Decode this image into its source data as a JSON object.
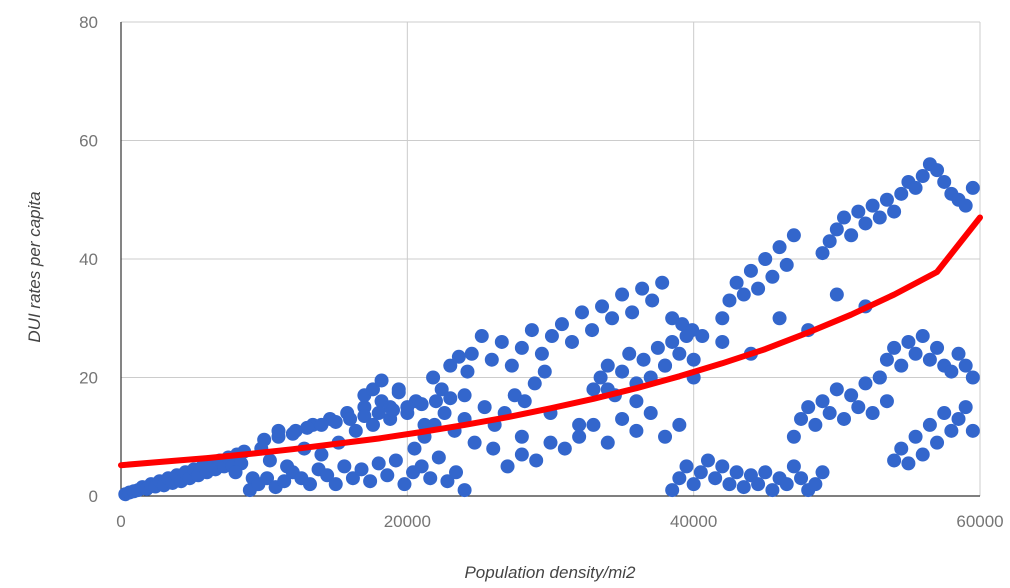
{
  "chart_data": {
    "type": "scatter",
    "title": "",
    "xlabel": "Population density/mi2",
    "ylabel": "DUI rates per capita",
    "xlim": [
      0,
      60000
    ],
    "ylim": [
      0,
      80
    ],
    "x_ticks": [
      0,
      20000,
      40000,
      60000
    ],
    "y_ticks": [
      0,
      20,
      40,
      60,
      80
    ],
    "x_tick_labels": [
      "0",
      "20000",
      "40000",
      "60000"
    ],
    "y_tick_labels": [
      "0",
      "20",
      "40",
      "60",
      "80"
    ],
    "grid": true,
    "legend": "none",
    "colors": {
      "points": "#3366cc",
      "trendline": "#ff0000",
      "grid": "#cccccc",
      "axis": "#333333"
    },
    "series": [
      {
        "x": [
          300,
          600,
          900,
          1200,
          1500,
          1800,
          2100,
          2400,
          2700,
          3000,
          3300,
          3600,
          3900,
          4200,
          4500,
          4800,
          5100,
          5400,
          5700,
          6000,
          6300,
          6600,
          6900,
          7200,
          7500,
          7800,
          8100,
          8400,
          8000,
          8600,
          9200,
          9800,
          10400,
          11000,
          11600,
          12200,
          12800,
          13400,
          14000,
          14600,
          15200,
          15800,
          16400,
          17000,
          17600,
          18200,
          18800,
          19400,
          9000,
          9600,
          10200,
          10800,
          11400,
          12000,
          12600,
          13200,
          13800,
          14400,
          15000,
          15600,
          16200,
          16800,
          17400,
          18000,
          18600,
          19200,
          19800,
          20400,
          21000,
          21600,
          22200,
          22800,
          23400,
          24000,
          17000,
          17600,
          18200,
          18800,
          19400,
          20000,
          20600,
          21200,
          21800,
          22400,
          23000,
          23600,
          24200,
          20500,
          21200,
          21900,
          22600,
          23300,
          24000,
          24700,
          25400,
          26100,
          26800,
          27500,
          28200,
          28900,
          29600,
          24500,
          25200,
          25900,
          26600,
          27300,
          28000,
          28700,
          29400,
          30100,
          30800,
          31500,
          32200,
          32900,
          33600,
          34300,
          35000,
          35700,
          36400,
          37100,
          37800,
          38500,
          39200,
          39900,
          40600,
          27000,
          28000,
          29000,
          30000,
          31000,
          32000,
          33000,
          34000,
          35000,
          36000,
          37000,
          38000,
          39000,
          33000,
          33500,
          34000,
          34500,
          35000,
          35500,
          36000,
          36500,
          37000,
          37500,
          38000,
          38500,
          39000,
          39500,
          40000,
          38500,
          39000,
          39500,
          40000,
          40500,
          41000,
          41500,
          42000,
          42500,
          43000,
          43500,
          44000,
          44500,
          45000,
          45500,
          46000,
          46500,
          47000,
          47500,
          48000,
          48500,
          49000,
          42000,
          42500,
          43000,
          43500,
          44000,
          44500,
          45000,
          45500,
          46000,
          46500,
          47000,
          47000,
          47500,
          48000,
          48500,
          49000,
          49500,
          50000,
          50500,
          51000,
          51500,
          52000,
          52500,
          53000,
          53500,
          49000,
          49500,
          50000,
          50500,
          51000,
          51500,
          52000,
          52500,
          53000,
          53500,
          54000,
          54500,
          55000,
          55500,
          56000,
          56500,
          57000,
          57500,
          58000,
          58500,
          59000,
          59500,
          53000,
          53500,
          54000,
          54500,
          55000,
          55500,
          56000,
          56500,
          57000,
          57500,
          58000,
          58500,
          59000,
          59500,
          54000,
          54500,
          55000,
          55500,
          56000,
          56500,
          57000,
          57500,
          58000,
          58500,
          59000,
          59500,
          10000,
          11000,
          12000,
          13000,
          14000,
          15000,
          16000,
          17000,
          18000,
          19000,
          20000,
          21000,
          22000,
          23000,
          24000,
          26000,
          28000,
          30000,
          32000,
          34000,
          36000,
          38000,
          40000,
          42000,
          44000,
          46000,
          48000,
          50000,
          52000
        ],
        "y": [
          0.3,
          0.6,
          0.8,
          1.0,
          1.5,
          1.2,
          2.0,
          1.6,
          2.5,
          1.8,
          3.0,
          2.2,
          3.5,
          2.5,
          4.0,
          3.0,
          4.5,
          3.5,
          5.0,
          4.0,
          5.5,
          4.5,
          6.0,
          5.0,
          6.5,
          5.0,
          7.0,
          5.5,
          4.0,
          7.5,
          3.0,
          8.0,
          6.0,
          10.0,
          5.0,
          11.0,
          8.0,
          12.0,
          7.0,
          13.0,
          9.0,
          14.0,
          11.0,
          15.0,
          12.0,
          16.0,
          13.0,
          17.5,
          1.0,
          2.0,
          3.0,
          1.5,
          2.5,
          4.0,
          3.0,
          2.0,
          4.5,
          3.5,
          2.0,
          5.0,
          3.0,
          4.5,
          2.5,
          5.5,
          3.5,
          6.0,
          2.0,
          4.0,
          5.0,
          3.0,
          6.5,
          2.5,
          4.0,
          1.0,
          17.0,
          18.0,
          19.5,
          15.0,
          18.0,
          14.0,
          16.0,
          12.0,
          20.0,
          18.0,
          22.0,
          23.5,
          21.0,
          8.0,
          10.0,
          12.0,
          14.0,
          11.0,
          13.0,
          9.0,
          15.0,
          12.0,
          14.0,
          17.0,
          16.0,
          19.0,
          21.0,
          24.0,
          27.0,
          23.0,
          26.0,
          22.0,
          25.0,
          28.0,
          24.0,
          27.0,
          29.0,
          26.0,
          31.0,
          28.0,
          32.0,
          30.0,
          34.0,
          31.0,
          35.0,
          33.0,
          36.0,
          30.0,
          29.0,
          28.0,
          27.0,
          5.0,
          7.0,
          6.0,
          9.0,
          8.0,
          10.0,
          12.0,
          9.0,
          13.0,
          11.0,
          14.0,
          10.0,
          12.0,
          18.0,
          20.0,
          22.0,
          17.0,
          21.0,
          24.0,
          19.0,
          23.0,
          20.0,
          25.0,
          22.0,
          26.0,
          24.0,
          27.0,
          23.0,
          1.0,
          3.0,
          5.0,
          2.0,
          4.0,
          6.0,
          3.0,
          5.0,
          2.0,
          4.0,
          1.5,
          3.5,
          2.0,
          4.0,
          1.0,
          3.0,
          2.0,
          5.0,
          3.0,
          1.0,
          2.0,
          4.0,
          30.0,
          33.0,
          36.0,
          34.0,
          38.0,
          35.0,
          40.0,
          37.0,
          42.0,
          39.0,
          44.0,
          10.0,
          13.0,
          15.0,
          12.0,
          16.0,
          14.0,
          18.0,
          13.0,
          17.0,
          15.0,
          19.0,
          14.0,
          20.0,
          16.0,
          41.0,
          43.0,
          45.0,
          47.0,
          44.0,
          48.0,
          46.0,
          49.0,
          47.0,
          50.0,
          48.0,
          51.0,
          53.0,
          52.0,
          54.0,
          56.0,
          55.0,
          53.0,
          51.0,
          50.0,
          49.0,
          52.0,
          20.0,
          23.0,
          25.0,
          22.0,
          26.0,
          24.0,
          27.0,
          23.0,
          25.0,
          22.0,
          21.0,
          24.0,
          22.0,
          20.0,
          6.0,
          8.0,
          5.5,
          10.0,
          7.0,
          12.0,
          9.0,
          14.0,
          11.0,
          13.0,
          15.0,
          11.0,
          9.5,
          11.0,
          10.5,
          11.5,
          12.0,
          12.5,
          13.0,
          13.5,
          14.0,
          14.5,
          15.0,
          15.5,
          16.0,
          16.5,
          17.0,
          8.0,
          10.0,
          14.0,
          12.0,
          18.0,
          16.0,
          22.0,
          20.0,
          26.0,
          24.0,
          30.0,
          28.0,
          34.0,
          32.0
        ]
      }
    ],
    "trendline": {
      "type": "exponential",
      "x": [
        0,
        3000,
        6000,
        9000,
        12000,
        15000,
        18000,
        21000,
        24000,
        27000,
        30000,
        33000,
        36000,
        39000,
        42000,
        45000,
        48000,
        51000,
        54000,
        57000,
        60000
      ],
      "y": [
        5.2,
        5.8,
        6.4,
        7.1,
        7.9,
        8.8,
        9.7,
        10.8,
        12.0,
        13.3,
        14.8,
        16.4,
        18.2,
        20.2,
        22.4,
        24.8,
        27.6,
        30.6,
        34.0,
        37.8,
        47.0
      ]
    }
  }
}
